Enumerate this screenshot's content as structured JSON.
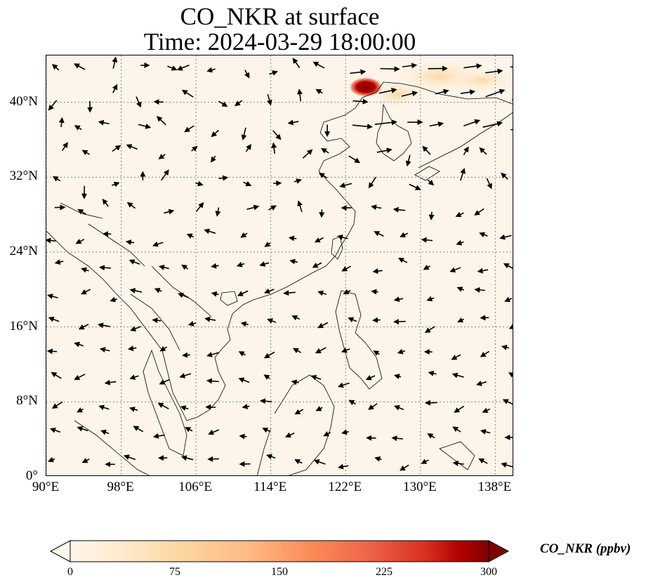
{
  "title": {
    "line1": "CO_NKR at surface",
    "line2": "Time: 2024-03-29 18:00:00"
  },
  "map": {
    "projection": "PlateCarree",
    "extent": {
      "lon": [
        90,
        140
      ],
      "lat": [
        0,
        45
      ]
    },
    "gridlines": "dotted",
    "lat_ticks": [
      "0°",
      "8°N",
      "16°N",
      "24°N",
      "32°N",
      "40°N"
    ],
    "lat_values": [
      0,
      8,
      16,
      24,
      32,
      40
    ],
    "lon_ticks": [
      "90°E",
      "98°E",
      "106°E",
      "114°E",
      "122°E",
      "130°E",
      "138°E"
    ],
    "lon_values": [
      90,
      98,
      106,
      114,
      122,
      130,
      138
    ],
    "field": "CO_NKR surface concentration",
    "background_color": "#fdf5e9",
    "hotspot": {
      "lon": 124.5,
      "lat": 41.5,
      "peak_ppbv": 300,
      "color": "#8b0000"
    },
    "wind_vectors": "quiver arrows (black)",
    "coastline_color": "#000000"
  },
  "colorbar": {
    "label": "CO_NKR (ppbv)",
    "ticks": [
      "0",
      "75",
      "150",
      "225",
      "300"
    ],
    "tick_values": [
      0,
      75,
      150,
      225,
      300
    ],
    "colormap": "OrRd",
    "extend": "both",
    "stops": [
      "#fff7ec",
      "#fee8c8",
      "#fdd49e",
      "#fdbb84",
      "#fc8d59",
      "#ef6548",
      "#d7301f",
      "#b30000",
      "#7f0000"
    ]
  }
}
